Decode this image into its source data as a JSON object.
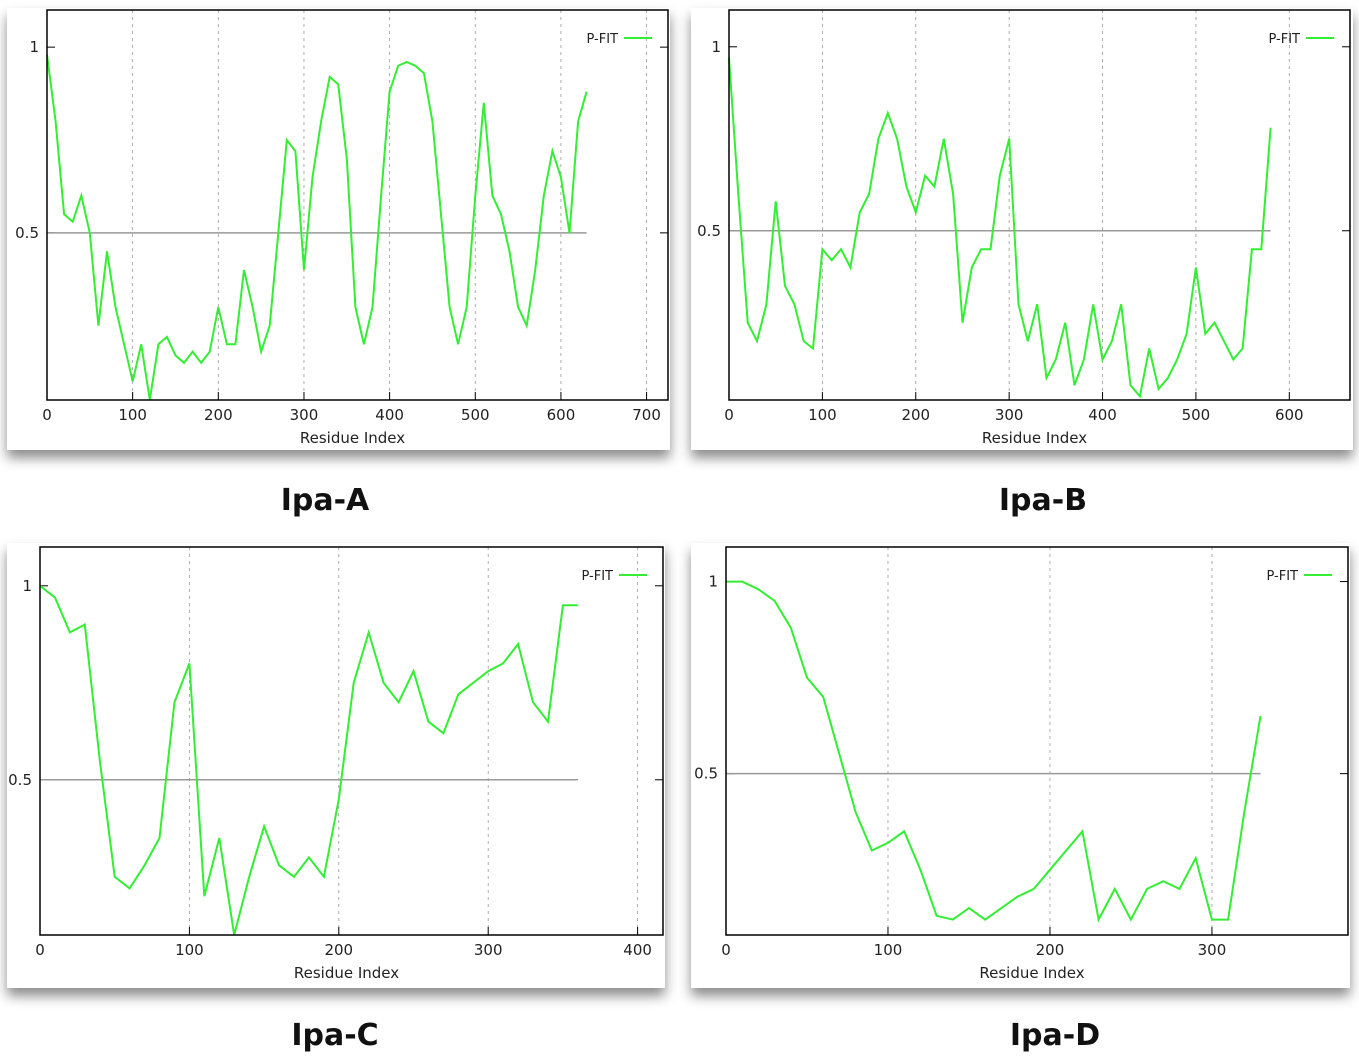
{
  "chart_data": [
    {
      "type": "line",
      "title": "Ipa-A",
      "xlabel": "Residue Index",
      "legend": "top-right",
      "grid": "x",
      "hline": 0.5,
      "xlim": [
        0,
        725
      ],
      "ylim": [
        0.05,
        1.1
      ],
      "xticks": [
        0,
        100,
        200,
        300,
        400,
        500,
        600,
        700
      ],
      "yticks": [
        0.5,
        1
      ],
      "x": [
        0,
        10,
        20,
        30,
        40,
        50,
        60,
        70,
        80,
        90,
        100,
        110,
        120,
        130,
        140,
        150,
        160,
        170,
        180,
        190,
        200,
        210,
        220,
        230,
        240,
        250,
        260,
        270,
        280,
        290,
        300,
        310,
        320,
        330,
        340,
        350,
        360,
        370,
        380,
        390,
        400,
        410,
        420,
        430,
        440,
        450,
        460,
        470,
        480,
        490,
        500,
        510,
        520,
        530,
        540,
        550,
        560,
        570,
        580,
        590,
        600,
        610,
        620,
        630
      ],
      "series": [
        {
          "name": "P-FIT",
          "color": "#33ee33",
          "values": [
            0.98,
            0.8,
            0.55,
            0.53,
            0.6,
            0.5,
            0.25,
            0.45,
            0.3,
            0.2,
            0.1,
            0.2,
            0.05,
            0.2,
            0.22,
            0.17,
            0.15,
            0.18,
            0.15,
            0.18,
            0.3,
            0.2,
            0.2,
            0.4,
            0.3,
            0.18,
            0.25,
            0.5,
            0.75,
            0.72,
            0.4,
            0.65,
            0.8,
            0.92,
            0.9,
            0.7,
            0.3,
            0.2,
            0.3,
            0.6,
            0.88,
            0.95,
            0.96,
            0.95,
            0.93,
            0.8,
            0.55,
            0.3,
            0.2,
            0.3,
            0.6,
            0.85,
            0.6,
            0.55,
            0.45,
            0.3,
            0.25,
            0.4,
            0.6,
            0.72,
            0.65,
            0.5,
            0.8,
            0.88
          ]
        }
      ]
    },
    {
      "type": "line",
      "title": "Ipa-B",
      "xlabel": "Residue Index",
      "legend": "top-right",
      "grid": "x",
      "hline": 0.5,
      "xlim": [
        0,
        665
      ],
      "ylim": [
        0.04,
        1.1
      ],
      "xticks": [
        0,
        100,
        200,
        300,
        400,
        500,
        600
      ],
      "yticks": [
        0.5,
        1
      ],
      "x": [
        0,
        10,
        20,
        30,
        40,
        50,
        60,
        70,
        80,
        90,
        100,
        110,
        120,
        130,
        140,
        150,
        160,
        170,
        180,
        190,
        200,
        210,
        220,
        230,
        240,
        250,
        260,
        270,
        280,
        290,
        300,
        310,
        320,
        330,
        340,
        350,
        360,
        370,
        380,
        390,
        400,
        410,
        420,
        430,
        440,
        450,
        460,
        470,
        480,
        490,
        500,
        510,
        520,
        530,
        540,
        550,
        560,
        570,
        580
      ],
      "series": [
        {
          "name": "P-FIT",
          "color": "#33ee33",
          "values": [
            0.97,
            0.6,
            0.25,
            0.2,
            0.3,
            0.58,
            0.35,
            0.3,
            0.2,
            0.18,
            0.45,
            0.42,
            0.45,
            0.4,
            0.55,
            0.6,
            0.75,
            0.82,
            0.75,
            0.62,
            0.55,
            0.65,
            0.62,
            0.75,
            0.6,
            0.25,
            0.4,
            0.45,
            0.45,
            0.65,
            0.75,
            0.3,
            0.2,
            0.3,
            0.1,
            0.15,
            0.25,
            0.08,
            0.15,
            0.3,
            0.15,
            0.2,
            0.3,
            0.08,
            0.05,
            0.18,
            0.07,
            0.1,
            0.15,
            0.22,
            0.4,
            0.22,
            0.25,
            0.2,
            0.15,
            0.18,
            0.45,
            0.45,
            0.78
          ]
        }
      ]
    },
    {
      "type": "line",
      "title": "Ipa-C",
      "xlabel": "Residue Index",
      "legend": "top-right",
      "grid": "x",
      "hline": 0.5,
      "xlim": [
        0,
        417
      ],
      "ylim": [
        0.1,
        1.1
      ],
      "xticks": [
        0,
        100,
        200,
        300,
        400
      ],
      "yticks": [
        0.5,
        1
      ],
      "x": [
        0,
        10,
        20,
        30,
        40,
        50,
        60,
        70,
        80,
        90,
        100,
        110,
        120,
        130,
        140,
        150,
        160,
        170,
        180,
        190,
        200,
        210,
        220,
        230,
        240,
        250,
        260,
        270,
        280,
        290,
        300,
        310,
        320,
        330,
        340,
        350,
        360
      ],
      "series": [
        {
          "name": "P-FIT",
          "color": "#33ee33",
          "values": [
            1.0,
            0.97,
            0.88,
            0.9,
            0.55,
            0.25,
            0.22,
            0.28,
            0.35,
            0.7,
            0.8,
            0.2,
            0.35,
            0.1,
            0.25,
            0.38,
            0.28,
            0.25,
            0.3,
            0.25,
            0.45,
            0.75,
            0.88,
            0.75,
            0.7,
            0.78,
            0.65,
            0.62,
            0.72,
            0.75,
            0.78,
            0.8,
            0.85,
            0.7,
            0.65,
            0.95,
            0.95
          ]
        }
      ]
    },
    {
      "type": "line",
      "title": "Ipa-D",
      "xlabel": "Residue Index",
      "legend": "top-right",
      "grid": "x",
      "hline": 0.5,
      "xlim": [
        0,
        384
      ],
      "ylim": [
        0.08,
        1.09
      ],
      "xticks": [
        0,
        100,
        200,
        300
      ],
      "yticks": [
        0.5,
        1
      ],
      "x": [
        0,
        10,
        20,
        30,
        40,
        50,
        60,
        70,
        80,
        90,
        100,
        110,
        120,
        130,
        140,
        150,
        160,
        170,
        180,
        190,
        200,
        210,
        220,
        230,
        240,
        250,
        260,
        270,
        280,
        290,
        300,
        310,
        320,
        330
      ],
      "series": [
        {
          "name": "P-FIT",
          "color": "#33ee33",
          "values": [
            1.0,
            1.0,
            0.98,
            0.95,
            0.88,
            0.75,
            0.7,
            0.55,
            0.4,
            0.3,
            0.32,
            0.35,
            0.25,
            0.13,
            0.12,
            0.15,
            0.12,
            0.15,
            0.18,
            0.2,
            0.25,
            0.3,
            0.35,
            0.12,
            0.2,
            0.12,
            0.2,
            0.22,
            0.2,
            0.28,
            0.12,
            0.12,
            0.4,
            0.65
          ]
        }
      ]
    }
  ]
}
